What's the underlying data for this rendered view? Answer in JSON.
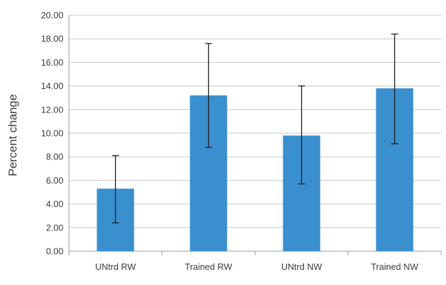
{
  "chart_data": {
    "type": "bar",
    "title": "",
    "xlabel": "",
    "ylabel": "Percent change",
    "categories": [
      "UNtrd RW",
      "Trained RW",
      "UNtrd NW",
      "Trained NW"
    ],
    "values": [
      5.3,
      13.2,
      9.8,
      13.8
    ],
    "error_bars": [
      {
        "low": 2.4,
        "high": 8.1
      },
      {
        "low": 8.8,
        "high": 17.6
      },
      {
        "low": 5.7,
        "high": 14.0
      },
      {
        "low": 9.1,
        "high": 18.4
      }
    ],
    "ylim": [
      0,
      20
    ],
    "yticks": [
      "0.00",
      "2.00",
      "4.00",
      "6.00",
      "8.00",
      "10.00",
      "12.00",
      "14.00",
      "16.00",
      "18.00",
      "20.00"
    ],
    "ytick_values": [
      0,
      2,
      4,
      6,
      8,
      10,
      12,
      14,
      16,
      18,
      20
    ],
    "grid": true,
    "legend": "none",
    "bar_color": "#3a8fcf",
    "grid_color": "#c8c8c8",
    "error_color": "#1a1a1a"
  }
}
